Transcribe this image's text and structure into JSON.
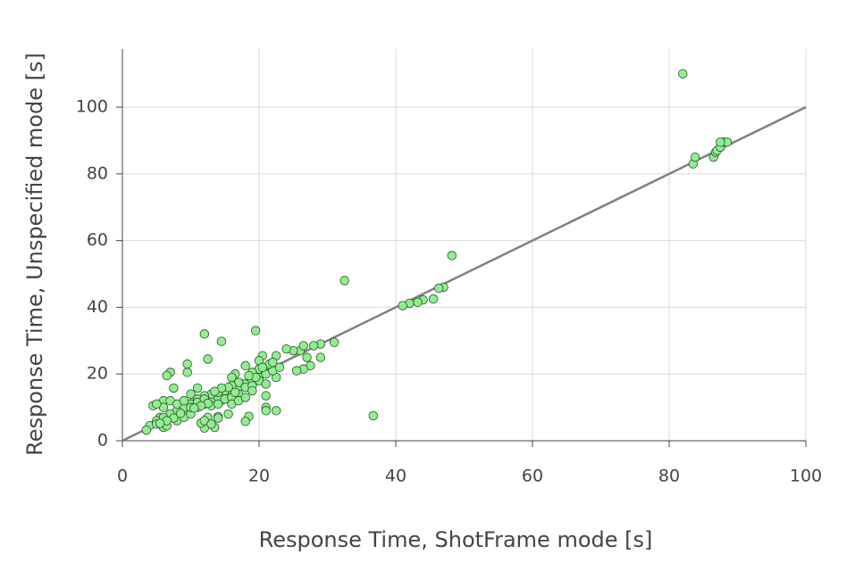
{
  "chart_data": {
    "type": "scatter",
    "x_label": "Response Time, ShotFrame mode [s]",
    "y_label": "Response Time, Unspecified mode [s]",
    "xlim": [
      0,
      100
    ],
    "ylim": [
      0,
      117.4
    ],
    "xticks": [
      0,
      20,
      40,
      60,
      80,
      100
    ],
    "yticks": [
      0,
      20,
      40,
      60,
      80,
      100
    ],
    "grid": true,
    "color": "#90ee90",
    "reference_line": {
      "x": [
        0,
        100
      ],
      "values": [
        0,
        100
      ],
      "color": "#808080"
    },
    "x": [
      82,
      83.5,
      83.8,
      86.5,
      86.8,
      87,
      87.5,
      88,
      88.5,
      87.5,
      48.2,
      47,
      46.3,
      45.5,
      44,
      43.2,
      42,
      41,
      32.5,
      36.7,
      19.5,
      12,
      14.5,
      12.5,
      31,
      29,
      29,
      28,
      27.5,
      27,
      26.5,
      26,
      25.5,
      25,
      26.5,
      24,
      22.5,
      22.5,
      22.5,
      21,
      21,
      21,
      20.5,
      20,
      19,
      18,
      17.5,
      18.5,
      18,
      16.5,
      16,
      15.5,
      15,
      14.5,
      14,
      13.5,
      13,
      12.5,
      12,
      11.5,
      11,
      10.5,
      10,
      9.5,
      9.5,
      9,
      8.5,
      8,
      7.5,
      7,
      6.5,
      6,
      5.5,
      5,
      4,
      3.5,
      4.5,
      6,
      6.5,
      7,
      8,
      9,
      10,
      11,
      12,
      13,
      14,
      15,
      16,
      17,
      18,
      19,
      20,
      21,
      22,
      23,
      20,
      19,
      21.5,
      22,
      17,
      16,
      15,
      14,
      13,
      12,
      11,
      10,
      9,
      8,
      7,
      6,
      5,
      6,
      5,
      7,
      8,
      9,
      10,
      11,
      12,
      13,
      14,
      15,
      16,
      17,
      18,
      19,
      20,
      21,
      20.5,
      19.5,
      18.5,
      16.5,
      15.5,
      14.5,
      13.5,
      12.5,
      11.5,
      10.5,
      8.5,
      7.5,
      6.5,
      5.5,
      12,
      13,
      14,
      16,
      17,
      18,
      19
    ],
    "values": [
      110,
      83,
      85,
      85,
      86.5,
      87,
      88,
      89.5,
      89.5,
      89.5,
      55.5,
      46,
      45.7,
      42.5,
      42.2,
      41.5,
      41.2,
      40.5,
      48,
      7.5,
      33,
      32,
      29.8,
      24.5,
      29.5,
      29,
      25,
      28.5,
      22.5,
      25,
      21.5,
      27,
      21,
      27,
      28.5,
      27.5,
      25.5,
      19,
      9,
      10,
      9,
      13.5,
      25.5,
      24,
      20,
      22.5,
      17,
      7.3,
      5.8,
      20,
      19,
      8,
      15.5,
      12,
      7.2,
      4,
      13,
      7,
      3.8,
      5.3,
      15.8,
      12,
      14,
      23,
      20.5,
      9,
      10,
      8,
      15.8,
      20.5,
      19.5,
      12,
      7,
      6,
      4.5,
      3.2,
      10.5,
      4,
      4.5,
      7.5,
      6,
      7,
      8,
      10,
      11,
      12,
      13,
      14,
      15,
      16,
      17,
      18,
      19,
      20,
      21,
      22,
      21.5,
      20.5,
      23,
      23.5,
      17.5,
      16.5,
      15,
      14.5,
      14,
      13.5,
      12.5,
      11,
      10,
      9,
      8,
      7,
      5,
      10,
      11,
      12,
      11,
      12,
      10,
      11.5,
      12.5,
      10.5,
      11,
      12.5,
      13,
      14,
      16,
      16.5,
      18,
      17,
      22,
      19,
      19.5,
      14.5,
      16,
      15.8,
      14.8,
      11.2,
      10.5,
      9.8,
      8.2,
      6.8,
      6,
      5.2,
      6,
      5,
      6.8,
      11,
      12,
      13,
      15
    ]
  }
}
